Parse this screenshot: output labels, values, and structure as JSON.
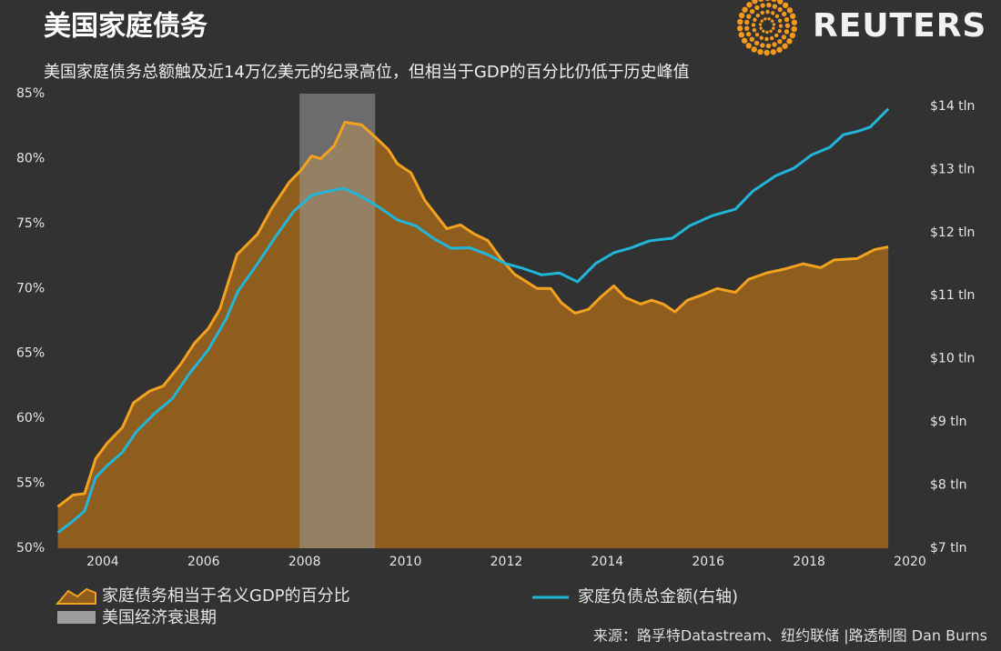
{
  "chart_data": {
    "type": "area",
    "title": "美国家庭债务",
    "subtitle": "美国家庭债务总额触及近14万亿美元的纪录高位，但相当于GDP的百分比仍低于历史峰值",
    "brand": "REUTERS",
    "source": "来源：路孚特Datastream、纽约联储 |路透制图 Dan Burns",
    "xlim": [
      2003.1,
      2020
    ],
    "xticks": [
      2004,
      2006,
      2008,
      2010,
      2012,
      2014,
      2016,
      2018,
      2020
    ],
    "ylim": [
      50,
      85
    ],
    "yticks": [
      {
        "value": 50,
        "label": "50%"
      },
      {
        "value": 55,
        "label": "55%"
      },
      {
        "value": 60,
        "label": "60%"
      },
      {
        "value": 65,
        "label": "65%"
      },
      {
        "value": 70,
        "label": "70%"
      },
      {
        "value": 75,
        "label": "75%"
      },
      {
        "value": 80,
        "label": "80%"
      },
      {
        "value": 85,
        "label": "85%"
      }
    ],
    "y2lim": [
      7,
      14.2
    ],
    "y2ticks": [
      {
        "value": 7,
        "label": "$7 tln"
      },
      {
        "value": 8,
        "label": "$8 tln"
      },
      {
        "value": 9,
        "label": "$9 tln"
      },
      {
        "value": 10,
        "label": "$10 tln"
      },
      {
        "value": 11,
        "label": "$11 tln"
      },
      {
        "value": 12,
        "label": "$12 tln"
      },
      {
        "value": 13,
        "label": "$13 tln"
      },
      {
        "value": 14,
        "label": "$14 tln"
      }
    ],
    "shade": {
      "name": "美国经济衰退期",
      "color": "#9d9d9d",
      "x": [
        2007.9,
        2009.4
      ]
    },
    "series": [
      {
        "name": "家庭债务相当于名义GDP的百分比",
        "type": "area",
        "color": "#f3a21f",
        "fill": "#8f5d1d",
        "x": [
          2003.11,
          2003.41,
          2003.64,
          2003.86,
          2004.09,
          2004.39,
          2004.61,
          2004.93,
          2005.2,
          2005.55,
          2005.82,
          2006.09,
          2006.32,
          2006.66,
          2007.07,
          2007.34,
          2007.7,
          2007.93,
          2008.14,
          2008.32,
          2008.59,
          2008.8,
          2009.13,
          2009.39,
          2009.66,
          2009.84,
          2010.11,
          2010.38,
          2010.82,
          2011.09,
          2011.36,
          2011.63,
          2011.89,
          2012.16,
          2012.61,
          2012.88,
          2013.09,
          2013.36,
          2013.63,
          2013.86,
          2014.13,
          2014.36,
          2014.66,
          2014.88,
          2015.11,
          2015.34,
          2015.59,
          2015.88,
          2016.18,
          2016.54,
          2016.8,
          2017.16,
          2017.52,
          2017.88,
          2018.23,
          2018.5,
          2018.95,
          2019.3,
          2019.57
        ],
        "values": [
          53.2,
          54.1,
          54.2,
          56.9,
          58.1,
          59.3,
          61.2,
          62.1,
          62.5,
          64.2,
          65.8,
          66.9,
          68.4,
          72.6,
          74.2,
          76.1,
          78.2,
          79.1,
          80.2,
          80.0,
          81.0,
          82.8,
          82.6,
          81.7,
          80.7,
          79.6,
          78.9,
          76.8,
          74.6,
          74.9,
          74.2,
          73.7,
          72.3,
          71.1,
          70.0,
          70.0,
          68.9,
          68.1,
          68.4,
          69.3,
          70.2,
          69.3,
          68.8,
          69.1,
          68.8,
          68.2,
          69.1,
          69.5,
          70.0,
          69.7,
          70.7,
          71.2,
          71.5,
          71.9,
          71.6,
          72.2,
          72.3,
          73.0,
          73.2
        ]
      },
      {
        "name": "家庭负债总金额(右轴)",
        "type": "line",
        "axis": "y2",
        "color": "#22b5da",
        "x": [
          2003.11,
          2003.41,
          2003.64,
          2003.86,
          2004.09,
          2004.39,
          2004.66,
          2005.02,
          2005.38,
          2005.73,
          2006.09,
          2006.45,
          2006.68,
          2007.07,
          2007.43,
          2007.79,
          2008.14,
          2008.5,
          2008.77,
          2009.04,
          2009.48,
          2009.84,
          2010.2,
          2010.55,
          2010.91,
          2011.27,
          2011.63,
          2011.98,
          2012.34,
          2012.7,
          2013.05,
          2013.41,
          2013.77,
          2014.13,
          2014.48,
          2014.84,
          2015.29,
          2015.64,
          2016.09,
          2016.54,
          2016.89,
          2017.34,
          2017.7,
          2018.05,
          2018.41,
          2018.68,
          2018.95,
          2019.21,
          2019.57
        ],
        "values": [
          7.25,
          7.43,
          7.59,
          8.12,
          8.31,
          8.52,
          8.84,
          9.13,
          9.37,
          9.78,
          10.14,
          10.64,
          11.07,
          11.51,
          11.94,
          12.34,
          12.59,
          12.66,
          12.7,
          12.61,
          12.4,
          12.2,
          12.11,
          11.91,
          11.75,
          11.76,
          11.65,
          11.51,
          11.43,
          11.33,
          11.36,
          11.22,
          11.51,
          11.68,
          11.76,
          11.87,
          11.91,
          12.11,
          12.27,
          12.37,
          12.66,
          12.9,
          13.02,
          13.23,
          13.35,
          13.55,
          13.6,
          13.67,
          13.96
        ]
      }
    ]
  }
}
